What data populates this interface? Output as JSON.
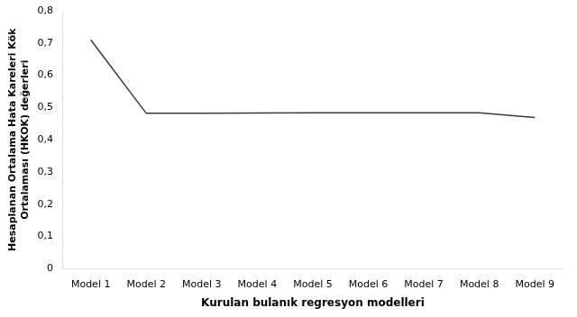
{
  "chart_data": {
    "type": "line",
    "xlabel": "Kurulan bulanık regresyon modelleri",
    "ylabel": "Hesaplanan Ortalama Hata Kareleri Kök\nOrtalaması (HKOK) değerleri",
    "categories": [
      "Model 1",
      "Model 2",
      "Model 3",
      "Model 4",
      "Model 5",
      "Model 6",
      "Model 7",
      "Model 8",
      "Model 9"
    ],
    "values": [
      0.71,
      0.482,
      0.482,
      0.483,
      0.484,
      0.484,
      0.484,
      0.484,
      0.469
    ],
    "color": "#3a3a3a",
    "ylim": [
      0,
      0.8
    ],
    "yticks": [
      0,
      {
        "value": 0.1,
        "label": "0,1"
      },
      {
        "value": 0.2,
        "label": "0,2"
      },
      {
        "value": 0.3,
        "label": "0,3"
      },
      {
        "value": 0.4,
        "label": "0,4"
      },
      {
        "value": 0.5,
        "label": "0,5"
      },
      {
        "value": 0.6,
        "label": "0,6"
      },
      {
        "value": 0.7,
        "label": "0,7"
      },
      {
        "value": 0.8,
        "label": "0,8"
      }
    ],
    "grid": false
  }
}
